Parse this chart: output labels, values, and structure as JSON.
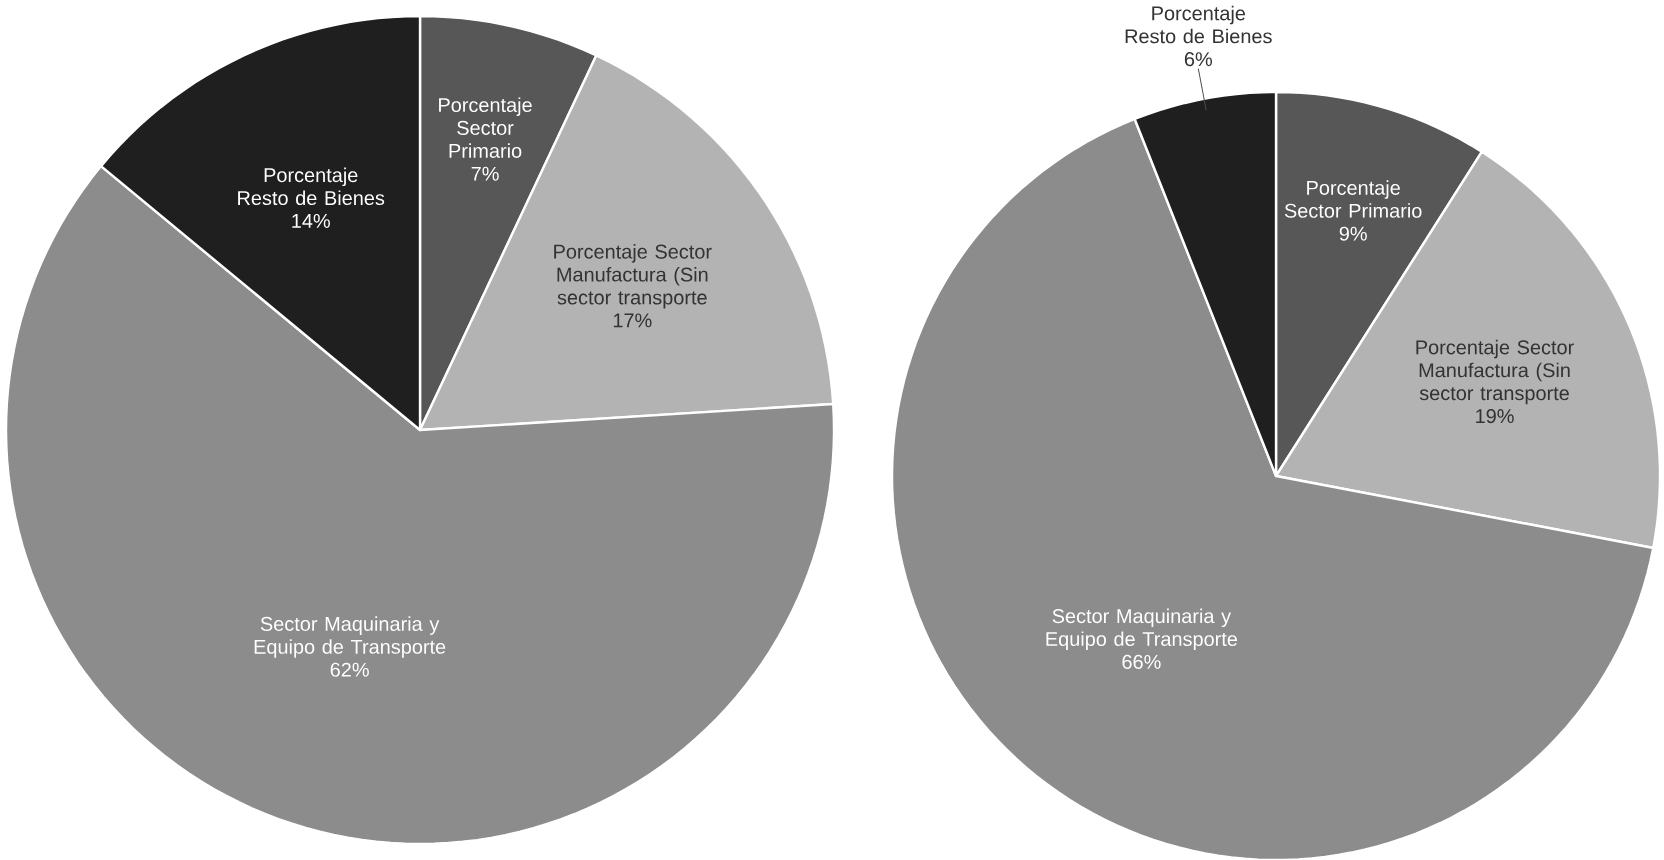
{
  "chart_data": [
    {
      "type": "pie",
      "categories": [
        "Porcentaje Sector Primario",
        "Porcentaje Sector Manufactura (Sin sector transporte",
        "Sector Maquinaria y Equipo de Transporte",
        "Porcentaje Resto de Bienes"
      ],
      "values": [
        7,
        17,
        62,
        14
      ],
      "value_labels": [
        "7%",
        "17%",
        "62%",
        "14%"
      ],
      "colors": [
        "#575757",
        "#b3b3b3",
        "#8c8c8c",
        "#1f1f1f"
      ]
    },
    {
      "type": "pie",
      "categories": [
        "Porcentaje Sector Primario",
        "Porcentaje Sector Manufactura (Sin sector transporte",
        "Sector Maquinaria y Equipo de Transporte",
        "Porcentaje Resto de Bienes"
      ],
      "values": [
        9,
        19,
        66,
        6
      ],
      "value_labels": [
        "9%",
        "19%",
        "66%",
        "6%"
      ],
      "colors": [
        "#575757",
        "#b3b3b3",
        "#8c8c8c",
        "#1f1f1f"
      ]
    }
  ]
}
